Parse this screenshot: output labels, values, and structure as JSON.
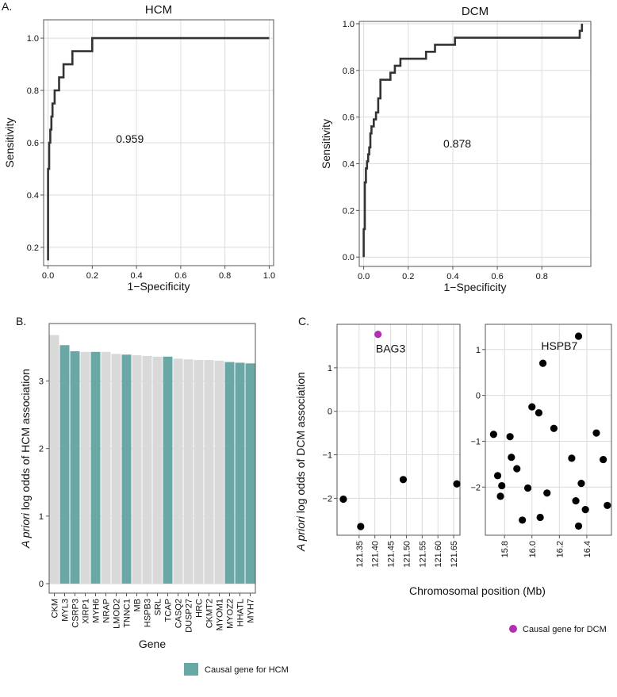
{
  "panel_labels": {
    "a": "A.",
    "b": "B.",
    "c": "C."
  },
  "colors": {
    "causal": "#6aa8a6",
    "noncausal": "#d9d9d9",
    "dcm_point": "#b030b0",
    "point": "#000000",
    "curve": "#333333"
  },
  "chart_data": [
    {
      "id": "roc_hcm",
      "type": "line",
      "title": "HCM",
      "xlabel": "1−Specificity",
      "ylabel": "Sensitivity",
      "xlim": [
        -0.02,
        1.02
      ],
      "ylim": [
        0.13,
        1.07
      ],
      "xticks": [
        0.0,
        0.2,
        0.4,
        0.6,
        0.8,
        1.0
      ],
      "xtick_labels": [
        "0.0",
        "0.2",
        "0.4",
        "0.6",
        "0.8",
        "1.0"
      ],
      "yticks": [
        0.2,
        0.4,
        0.6,
        0.8,
        1.0
      ],
      "ytick_labels": [
        "0.2",
        "0.4",
        "0.6",
        "0.8",
        "1.0"
      ],
      "auc_label": "0.959",
      "auc_position": [
        0.37,
        0.6
      ],
      "x": [
        0.0,
        0.0,
        0.005,
        0.005,
        0.01,
        0.01,
        0.015,
        0.015,
        0.02,
        0.02,
        0.03,
        0.03,
        0.05,
        0.05,
        0.07,
        0.07,
        0.11,
        0.11,
        0.2,
        0.2,
        0.3,
        0.3,
        1.0
      ],
      "y": [
        0.15,
        0.5,
        0.5,
        0.6,
        0.6,
        0.65,
        0.65,
        0.7,
        0.7,
        0.75,
        0.75,
        0.8,
        0.8,
        0.85,
        0.85,
        0.9,
        0.9,
        0.95,
        0.95,
        1.0,
        1.0,
        1.0,
        1.0
      ]
    },
    {
      "id": "roc_dcm",
      "type": "line",
      "title": "DCM",
      "xlabel": "1−Specificity",
      "ylabel": "Sensitivity",
      "xlim": [
        -0.02,
        1.02
      ],
      "ylim": [
        -0.04,
        1.01
      ],
      "xticks": [
        0.0,
        0.2,
        0.4,
        0.6,
        0.8
      ],
      "xtick_labels": [
        "0.0",
        "0.2",
        "0.4",
        "0.6",
        "0.8"
      ],
      "yticks": [
        0.0,
        0.2,
        0.4,
        0.6,
        0.8,
        1.0
      ],
      "ytick_labels": [
        "0.0",
        "0.2",
        "0.4",
        "0.6",
        "0.8",
        "1.0"
      ],
      "auc_label": "0.878",
      "auc_position": [
        0.42,
        0.47
      ],
      "x": [
        0.0,
        0.0,
        0.005,
        0.005,
        0.01,
        0.01,
        0.015,
        0.015,
        0.02,
        0.02,
        0.025,
        0.025,
        0.03,
        0.03,
        0.035,
        0.035,
        0.045,
        0.045,
        0.055,
        0.055,
        0.065,
        0.065,
        0.075,
        0.075,
        0.12,
        0.12,
        0.14,
        0.14,
        0.165,
        0.165,
        0.28,
        0.28,
        0.32,
        0.32,
        0.41,
        0.41,
        0.97,
        0.97,
        0.98,
        0.98
      ],
      "y": [
        0.0,
        0.12,
        0.12,
        0.32,
        0.32,
        0.38,
        0.38,
        0.41,
        0.41,
        0.44,
        0.44,
        0.47,
        0.47,
        0.53,
        0.53,
        0.56,
        0.56,
        0.59,
        0.59,
        0.62,
        0.62,
        0.68,
        0.68,
        0.76,
        0.76,
        0.79,
        0.79,
        0.82,
        0.82,
        0.85,
        0.85,
        0.88,
        0.88,
        0.91,
        0.91,
        0.94,
        0.94,
        0.97,
        0.97,
        1.0
      ]
    },
    {
      "id": "hcm_priors",
      "type": "bar",
      "xlabel": "Gene",
      "ylabel_italic": "A priori",
      "ylabel_rest": " log odds of HCM association",
      "ylim": [
        -0.14,
        3.85
      ],
      "yticks": [
        0,
        1,
        2,
        3
      ],
      "ytick_labels": [
        "0",
        "1",
        "2",
        "3"
      ],
      "categories": [
        "CKM",
        "MYL3",
        "CSRP3",
        "XIRP1",
        "MYH6",
        "NRAP",
        "LMOD2",
        "TNNC1",
        "MB",
        "HSPB3",
        "SRL",
        "TCAP",
        "CASQ2",
        "DUSP27",
        "HRC",
        "CKMT2",
        "MYOM1",
        "MYOZ2",
        "HHATL",
        "MYH7"
      ],
      "values": [
        3.68,
        3.53,
        3.44,
        3.43,
        3.43,
        3.43,
        3.4,
        3.39,
        3.38,
        3.37,
        3.36,
        3.36,
        3.33,
        3.32,
        3.31,
        3.31,
        3.3,
        3.28,
        3.27,
        3.26
      ],
      "causal": [
        false,
        true,
        true,
        false,
        true,
        false,
        false,
        true,
        false,
        false,
        false,
        true,
        false,
        false,
        false,
        false,
        false,
        true,
        true,
        true
      ],
      "legend_label": "Causal gene for HCM"
    },
    {
      "id": "bag3_region",
      "type": "scatter",
      "ylabel_italic": "A priori",
      "ylabel_rest": " log odds of DCM association",
      "xlim": [
        121.28,
        121.67
      ],
      "ylim": [
        -2.85,
        2.0
      ],
      "xticks": [
        121.35,
        121.4,
        121.45,
        121.5,
        121.55,
        121.6,
        121.65
      ],
      "xtick_labels": [
        "121.35",
        "121.40",
        "121.45",
        "121.50",
        "121.55",
        "121.60",
        "121.65"
      ],
      "yticks": [
        -2,
        -1,
        0,
        1
      ],
      "ytick_labels": [
        "−2",
        "−1",
        "0",
        "1"
      ],
      "annotation": "BAG3",
      "annotation_position": [
        121.45,
        1.35
      ],
      "x": [
        121.3,
        121.355,
        121.41,
        121.49,
        121.66
      ],
      "y": [
        -2.02,
        -2.65,
        1.77,
        -1.57,
        -1.67
      ],
      "causal": [
        false,
        false,
        true,
        false,
        false
      ]
    },
    {
      "id": "hspb7_region",
      "type": "scatter",
      "xlabel": "Chromosomal position (Mb)",
      "xlim": [
        15.66,
        16.58
      ],
      "ylim": [
        -3.05,
        1.55
      ],
      "xticks": [
        15.8,
        16.0,
        16.2,
        16.4
      ],
      "xtick_labels": [
        "15.8",
        "16.0",
        "16.2",
        "16.4"
      ],
      "yticks": [
        -2,
        -1,
        0,
        1
      ],
      "ytick_labels": [
        "−2",
        "−1",
        "0",
        "1"
      ],
      "annotation": "HSPB7",
      "annotation_position": [
        16.2,
        1.0
      ],
      "x": [
        15.72,
        15.75,
        15.77,
        15.78,
        15.84,
        15.85,
        15.89,
        15.93,
        15.97,
        16.0,
        16.05,
        16.06,
        16.08,
        16.11,
        16.16,
        16.29,
        16.32,
        16.34,
        16.34,
        16.36,
        16.39,
        16.47,
        16.52,
        16.55
      ],
      "y": [
        -0.85,
        -1.75,
        -2.2,
        -1.97,
        -0.9,
        -1.35,
        -1.6,
        -2.72,
        -2.02,
        -0.25,
        -0.38,
        -2.66,
        0.7,
        -2.13,
        -0.72,
        -1.37,
        -2.3,
        -2.85,
        1.29,
        -1.92,
        -2.49,
        -0.82,
        -1.4,
        -2.4
      ],
      "legend_label": "Causal gene for DCM"
    }
  ]
}
